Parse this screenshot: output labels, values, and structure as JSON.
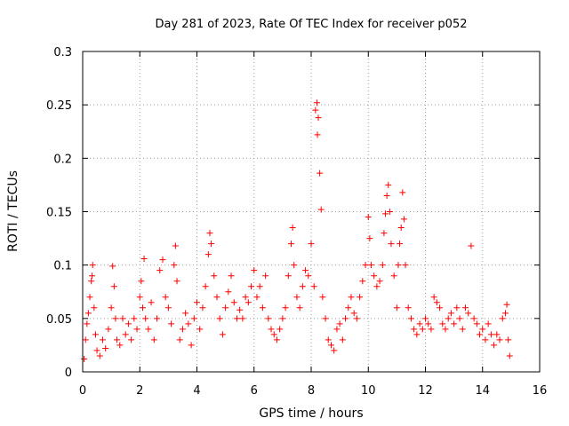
{
  "chart_data": {
    "type": "scatter",
    "title": "Day 281 of 2023, Rate Of TEC Index for receiver p052",
    "xlabel": "GPS time / hours",
    "ylabel": "ROTI / TECUs",
    "xlim": [
      0,
      16
    ],
    "ylim": [
      0,
      0.3
    ],
    "x_ticks": [
      0,
      2,
      4,
      6,
      8,
      10,
      12,
      14,
      16
    ],
    "x_tick_labels": [
      "0",
      "2",
      "4",
      "6",
      "8",
      "10",
      "12",
      "14",
      "16"
    ],
    "y_ticks": [
      0,
      0.05,
      0.1,
      0.15,
      0.2,
      0.25,
      0.3
    ],
    "y_tick_labels": [
      "0",
      "0.05",
      "0.1",
      "0.15",
      "0.2",
      "0.25",
      "0.3"
    ],
    "grid": true,
    "marker": "+",
    "color": "#ff0000",
    "series": [
      {
        "name": "ROTI",
        "points": [
          [
            0.05,
            0.012
          ],
          [
            0.1,
            0.03
          ],
          [
            0.15,
            0.045
          ],
          [
            0.2,
            0.055
          ],
          [
            0.25,
            0.07
          ],
          [
            0.3,
            0.085
          ],
          [
            0.33,
            0.09
          ],
          [
            0.35,
            0.1
          ],
          [
            0.4,
            0.06
          ],
          [
            0.45,
            0.035
          ],
          [
            0.5,
            0.02
          ],
          [
            0.6,
            0.015
          ],
          [
            0.7,
            0.03
          ],
          [
            0.8,
            0.022
          ],
          [
            0.9,
            0.04
          ],
          [
            1.0,
            0.06
          ],
          [
            1.05,
            0.099
          ],
          [
            1.1,
            0.08
          ],
          [
            1.15,
            0.05
          ],
          [
            1.2,
            0.03
          ],
          [
            1.3,
            0.025
          ],
          [
            1.4,
            0.05
          ],
          [
            1.5,
            0.035
          ],
          [
            1.6,
            0.045
          ],
          [
            1.7,
            0.03
          ],
          [
            1.8,
            0.05
          ],
          [
            1.9,
            0.04
          ],
          [
            2.0,
            0.07
          ],
          [
            2.05,
            0.085
          ],
          [
            2.1,
            0.06
          ],
          [
            2.15,
            0.106
          ],
          [
            2.2,
            0.05
          ],
          [
            2.3,
            0.04
          ],
          [
            2.4,
            0.065
          ],
          [
            2.5,
            0.03
          ],
          [
            2.6,
            0.05
          ],
          [
            2.7,
            0.095
          ],
          [
            2.8,
            0.105
          ],
          [
            2.9,
            0.07
          ],
          [
            3.0,
            0.06
          ],
          [
            3.1,
            0.045
          ],
          [
            3.2,
            0.1
          ],
          [
            3.25,
            0.118
          ],
          [
            3.3,
            0.085
          ],
          [
            3.4,
            0.03
          ],
          [
            3.5,
            0.04
          ],
          [
            3.6,
            0.055
          ],
          [
            3.7,
            0.045
          ],
          [
            3.8,
            0.025
          ],
          [
            3.9,
            0.05
          ],
          [
            4.0,
            0.065
          ],
          [
            4.1,
            0.04
          ],
          [
            4.2,
            0.06
          ],
          [
            4.3,
            0.08
          ],
          [
            4.4,
            0.11
          ],
          [
            4.45,
            0.13
          ],
          [
            4.5,
            0.12
          ],
          [
            4.6,
            0.09
          ],
          [
            4.7,
            0.07
          ],
          [
            4.8,
            0.05
          ],
          [
            4.9,
            0.035
          ],
          [
            5.0,
            0.06
          ],
          [
            5.1,
            0.075
          ],
          [
            5.2,
            0.09
          ],
          [
            5.3,
            0.065
          ],
          [
            5.4,
            0.05
          ],
          [
            5.5,
            0.058
          ],
          [
            5.6,
            0.05
          ],
          [
            5.7,
            0.07
          ],
          [
            5.8,
            0.065
          ],
          [
            5.9,
            0.08
          ],
          [
            6.0,
            0.095
          ],
          [
            6.1,
            0.07
          ],
          [
            6.2,
            0.08
          ],
          [
            6.3,
            0.06
          ],
          [
            6.4,
            0.09
          ],
          [
            6.5,
            0.05
          ],
          [
            6.6,
            0.04
          ],
          [
            6.7,
            0.035
          ],
          [
            6.8,
            0.03
          ],
          [
            6.9,
            0.04
          ],
          [
            7.0,
            0.05
          ],
          [
            7.1,
            0.06
          ],
          [
            7.2,
            0.09
          ],
          [
            7.3,
            0.12
          ],
          [
            7.35,
            0.135
          ],
          [
            7.4,
            0.1
          ],
          [
            7.5,
            0.07
          ],
          [
            7.6,
            0.06
          ],
          [
            7.7,
            0.08
          ],
          [
            7.8,
            0.095
          ],
          [
            7.9,
            0.09
          ],
          [
            8.0,
            0.12
          ],
          [
            8.1,
            0.08
          ],
          [
            8.15,
            0.245
          ],
          [
            8.2,
            0.252
          ],
          [
            8.22,
            0.222
          ],
          [
            8.25,
            0.238
          ],
          [
            8.3,
            0.186
          ],
          [
            8.35,
            0.152
          ],
          [
            8.4,
            0.07
          ],
          [
            8.5,
            0.05
          ],
          [
            8.6,
            0.03
          ],
          [
            8.7,
            0.025
          ],
          [
            8.8,
            0.02
          ],
          [
            8.9,
            0.04
          ],
          [
            9.0,
            0.045
          ],
          [
            9.1,
            0.03
          ],
          [
            9.2,
            0.05
          ],
          [
            9.3,
            0.06
          ],
          [
            9.4,
            0.07
          ],
          [
            9.5,
            0.055
          ],
          [
            9.6,
            0.05
          ],
          [
            9.7,
            0.07
          ],
          [
            9.8,
            0.085
          ],
          [
            9.9,
            0.1
          ],
          [
            10.0,
            0.145
          ],
          [
            10.05,
            0.125
          ],
          [
            10.1,
            0.1
          ],
          [
            10.2,
            0.09
          ],
          [
            10.3,
            0.08
          ],
          [
            10.4,
            0.085
          ],
          [
            10.5,
            0.1
          ],
          [
            10.55,
            0.13
          ],
          [
            10.6,
            0.148
          ],
          [
            10.65,
            0.165
          ],
          [
            10.7,
            0.175
          ],
          [
            10.75,
            0.15
          ],
          [
            10.8,
            0.12
          ],
          [
            10.9,
            0.09
          ],
          [
            11.0,
            0.06
          ],
          [
            11.05,
            0.1
          ],
          [
            11.1,
            0.12
          ],
          [
            11.15,
            0.135
          ],
          [
            11.2,
            0.168
          ],
          [
            11.25,
            0.143
          ],
          [
            11.3,
            0.1
          ],
          [
            11.4,
            0.06
          ],
          [
            11.5,
            0.05
          ],
          [
            11.6,
            0.04
          ],
          [
            11.7,
            0.035
          ],
          [
            11.8,
            0.045
          ],
          [
            11.9,
            0.04
          ],
          [
            12.0,
            0.05
          ],
          [
            12.1,
            0.045
          ],
          [
            12.2,
            0.04
          ],
          [
            12.3,
            0.07
          ],
          [
            12.4,
            0.065
          ],
          [
            12.5,
            0.06
          ],
          [
            12.6,
            0.045
          ],
          [
            12.7,
            0.04
          ],
          [
            12.8,
            0.05
          ],
          [
            12.9,
            0.055
          ],
          [
            13.0,
            0.045
          ],
          [
            13.1,
            0.06
          ],
          [
            13.2,
            0.05
          ],
          [
            13.3,
            0.04
          ],
          [
            13.4,
            0.06
          ],
          [
            13.5,
            0.055
          ],
          [
            13.6,
            0.118
          ],
          [
            13.7,
            0.05
          ],
          [
            13.8,
            0.045
          ],
          [
            13.9,
            0.035
          ],
          [
            14.0,
            0.04
          ],
          [
            14.1,
            0.03
          ],
          [
            14.2,
            0.045
          ],
          [
            14.3,
            0.035
          ],
          [
            14.4,
            0.025
          ],
          [
            14.5,
            0.035
          ],
          [
            14.6,
            0.03
          ],
          [
            14.7,
            0.05
          ],
          [
            14.8,
            0.055
          ],
          [
            14.85,
            0.063
          ],
          [
            14.9,
            0.03
          ],
          [
            14.95,
            0.015
          ]
        ]
      }
    ]
  }
}
